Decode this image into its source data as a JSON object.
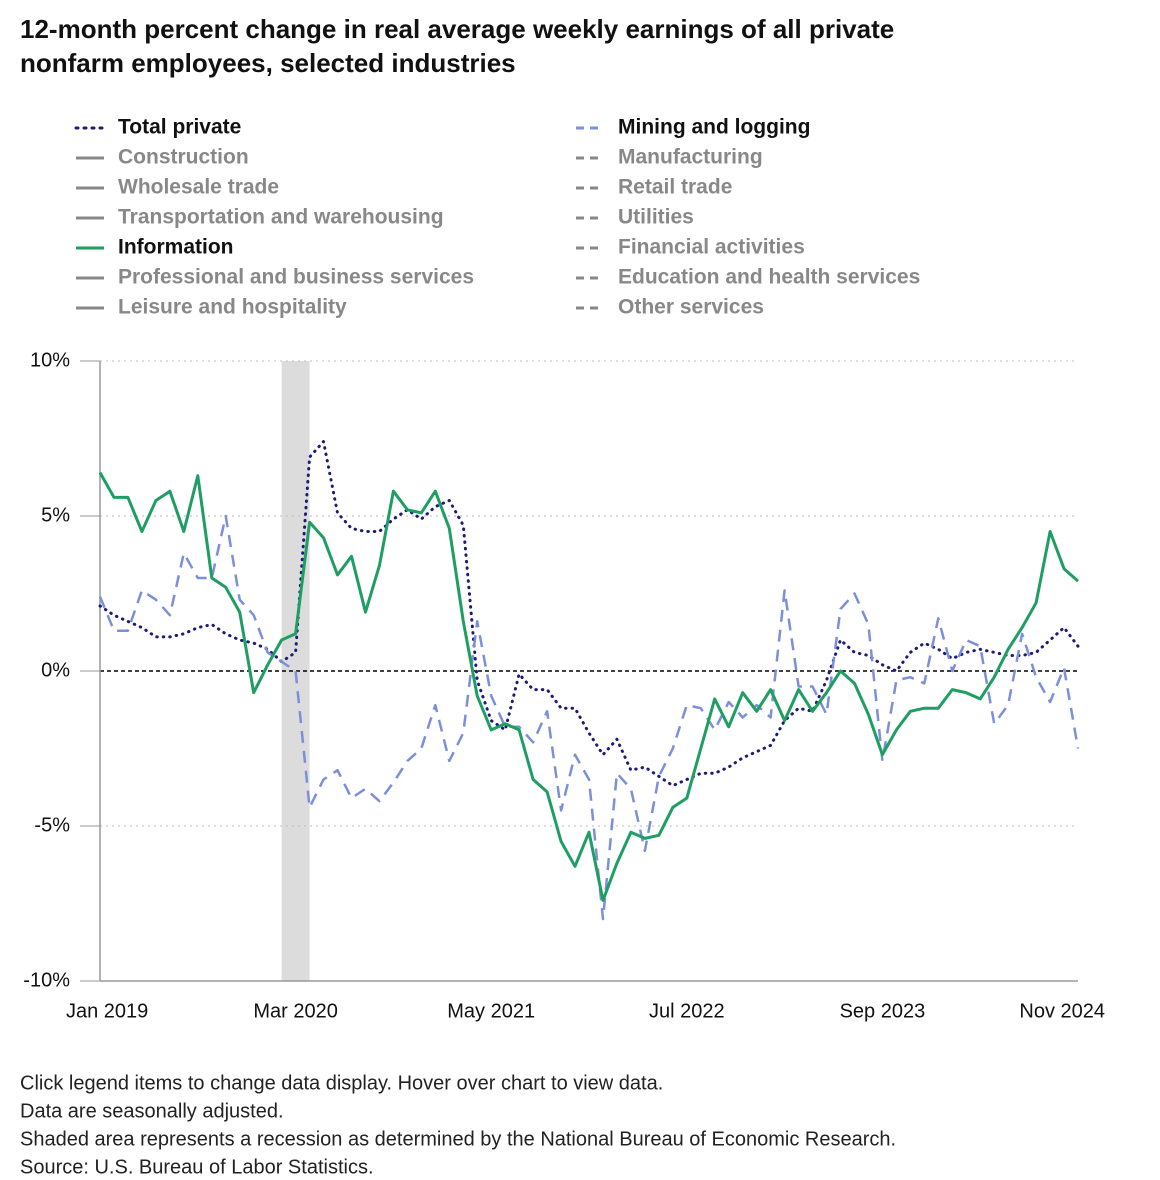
{
  "chart_data": {
    "type": "line",
    "title": "12-month percent change in real average weekly earnings of all private nonfarm employees, selected industries",
    "categories": [
      "Jan 2019",
      null,
      null,
      null,
      null,
      null,
      null,
      null,
      null,
      null,
      null,
      null,
      null,
      null,
      "Mar 2020",
      null,
      null,
      null,
      null,
      null,
      null,
      null,
      null,
      null,
      null,
      null,
      null,
      null,
      "May 2021",
      null,
      null,
      null,
      null,
      null,
      null,
      null,
      null,
      null,
      null,
      null,
      null,
      null,
      "Jul 2022",
      null,
      null,
      null,
      null,
      null,
      null,
      null,
      null,
      null,
      null,
      null,
      null,
      null,
      "Sep 2023",
      null,
      null,
      null,
      null,
      null,
      null,
      null,
      null,
      null,
      null,
      null,
      null,
      null,
      "Nov 2024"
    ],
    "series": [
      {
        "name": "Total private",
        "color": "#1c1c78",
        "dash": "dotted",
        "visible": true,
        "values": [
          2.1,
          1.8,
          1.6,
          1.4,
          1.1,
          1.1,
          1.2,
          1.4,
          1.5,
          1.2,
          1.0,
          0.9,
          0.7,
          0.3,
          0.6,
          6.9,
          7.4,
          5.1,
          4.6,
          4.5,
          4.5,
          4.9,
          5.2,
          4.9,
          5.3,
          5.5,
          4.7,
          -0.3,
          -1.6,
          -1.9,
          -0.1,
          -0.6,
          -0.6,
          -1.2,
          -1.2,
          -2.0,
          -2.7,
          -2.2,
          -3.2,
          -3.1,
          -3.4,
          -3.7,
          -3.5,
          -3.3,
          -3.3,
          -3.1,
          -2.8,
          -2.6,
          -2.4,
          -1.6,
          -1.2,
          -1.3,
          -0.3,
          1.0,
          0.6,
          0.5,
          0.2,
          0.0,
          0.6,
          0.9,
          0.7,
          0.4,
          0.6,
          0.7,
          0.6,
          0.5,
          0.5,
          0.6,
          1.0,
          1.4,
          0.8
        ]
      },
      {
        "name": "Construction",
        "color": "#888888",
        "dash": "solid",
        "visible": false
      },
      {
        "name": "Wholesale trade",
        "color": "#888888",
        "dash": "solid",
        "visible": false
      },
      {
        "name": "Transportation and warehousing",
        "color": "#888888",
        "dash": "solid",
        "visible": false
      },
      {
        "name": "Information",
        "color": "#1f9e63",
        "dash": "solid",
        "visible": true,
        "values": [
          6.4,
          5.6,
          5.6,
          4.5,
          5.5,
          5.8,
          4.5,
          6.3,
          3.0,
          2.7,
          1.9,
          -0.7,
          0.2,
          1.0,
          1.2,
          4.8,
          4.3,
          3.1,
          3.7,
          1.9,
          3.4,
          5.8,
          5.2,
          5.1,
          5.8,
          4.6,
          1.6,
          -0.8,
          -1.9,
          -1.7,
          -1.9,
          -3.5,
          -3.9,
          -5.5,
          -6.3,
          -5.2,
          -7.4,
          -6.2,
          -5.2,
          -5.4,
          -5.3,
          -4.4,
          -4.1,
          -2.5,
          -0.9,
          -1.8,
          -0.7,
          -1.3,
          -0.6,
          -1.6,
          -0.6,
          -1.3,
          -0.7,
          0.0,
          -0.4,
          -1.4,
          -2.7,
          -1.9,
          -1.3,
          -1.2,
          -1.2,
          -0.6,
          -0.7,
          -0.9,
          -0.2,
          0.7,
          1.4,
          2.2,
          4.5,
          3.3,
          2.9
        ]
      },
      {
        "name": "Professional and business services",
        "color": "#888888",
        "dash": "solid",
        "visible": false
      },
      {
        "name": "Leisure and hospitality",
        "color": "#888888",
        "dash": "solid",
        "visible": false
      },
      {
        "name": "Mining and logging",
        "color": "#7b8fdb",
        "dash": "dashed",
        "visible": true,
        "values": [
          2.4,
          1.3,
          1.3,
          2.6,
          2.3,
          1.8,
          3.8,
          3.0,
          3.0,
          5.0,
          2.3,
          1.8,
          0.6,
          0.3,
          0.0,
          -4.4,
          -3.5,
          -3.2,
          -4.1,
          -3.8,
          -4.2,
          -3.6,
          -2.9,
          -2.5,
          -1.1,
          -2.9,
          -2.0,
          1.6,
          -0.8,
          -1.8,
          -1.8,
          -2.3,
          -1.3,
          -4.5,
          -2.7,
          -3.5,
          -8.0,
          -3.3,
          -3.8,
          -5.8,
          -3.4,
          -2.5,
          -1.1,
          -1.2,
          -1.9,
          -1.0,
          -1.5,
          -1.1,
          -1.5,
          2.6,
          -0.5,
          -0.5,
          -1.4,
          2.0,
          2.5,
          1.5,
          -2.9,
          -0.3,
          -0.2,
          -0.4,
          1.7,
          0.0,
          1.0,
          0.8,
          -1.7,
          -1.1,
          1.2,
          -0.2,
          -1.0,
          0.1,
          -2.5
        ]
      },
      {
        "name": "Manufacturing",
        "color": "#888888",
        "dash": "dashed",
        "visible": false
      },
      {
        "name": "Retail trade",
        "color": "#888888",
        "dash": "dashed",
        "visible": false
      },
      {
        "name": "Utilities",
        "color": "#888888",
        "dash": "dashed",
        "visible": false
      },
      {
        "name": "Financial activities",
        "color": "#888888",
        "dash": "dashed",
        "visible": false
      },
      {
        "name": "Education and health services",
        "color": "#888888",
        "dash": "dashed",
        "visible": false
      },
      {
        "name": "Other services",
        "color": "#888888",
        "dash": "dashed",
        "visible": false
      }
    ],
    "ylim": [
      -10,
      10
    ],
    "yticks": [
      {
        "value": -10,
        "label": "-10%"
      },
      {
        "value": -5,
        "label": "-5%"
      },
      {
        "value": 0,
        "label": "0%"
      },
      {
        "value": 5,
        "label": "5%"
      },
      {
        "value": 10,
        "label": "10%"
      }
    ],
    "grid": true,
    "recession": [
      13,
      15
    ],
    "notes": [
      "Click legend items to change data display. Hover over chart to view data.",
      "Data are seasonally adjusted.",
      "Shaded area represents a recession as determined by the National Bureau of Economic Research.",
      "Source: U.S. Bureau of Labor Statistics."
    ]
  }
}
